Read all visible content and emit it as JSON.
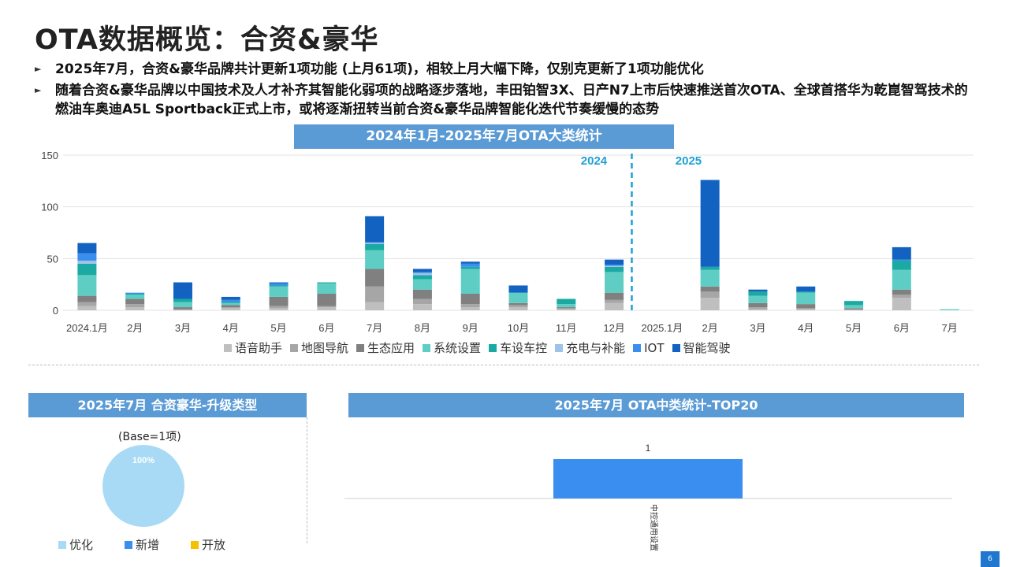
{
  "page": {
    "title": "OTA数据概览：合资&豪华",
    "bullets": [
      "2025年7月，合资&豪华品牌共计更新1项功能 (上月61项)，相较上月大幅下降，仅别克更新了1项功能优化",
      "随着合资&豪华品牌以中国技术及人才补齐其智能化弱项的战略逐步落地，丰田铂智3X、日产N7上市后快速推送首次OTA、全球首搭华为乾崑智驾技术的燃油车奥迪A5L Sportback正式上市，或将逐渐扭转当前合资&豪华品牌智能化迭代节奏缓慢的态势"
    ],
    "bullet_marker": "►",
    "page_number": "6"
  },
  "chart_data": [
    {
      "type": "bar",
      "stacked": true,
      "title": "2024年1月-2025年7月OTA大类统计",
      "categories": [
        "2024.1月",
        "2月",
        "3月",
        "4月",
        "5月",
        "6月",
        "7月",
        "8月",
        "9月",
        "10月",
        "11月",
        "12月",
        "2025.1月",
        "2月",
        "3月",
        "4月",
        "5月",
        "6月",
        "7月"
      ],
      "ylim": [
        0,
        150
      ],
      "yticks": [
        0,
        50,
        100,
        150
      ],
      "grid": true,
      "year_labels": [
        "2024",
        "2025"
      ],
      "legend_position": "bottom",
      "series": [
        {
          "name": "语音助手",
          "color": "#bfbfbf",
          "values": [
            4,
            3,
            0,
            2,
            2,
            3,
            8,
            6,
            3,
            3,
            1,
            7,
            0,
            12,
            1,
            1,
            0,
            12,
            0
          ]
        },
        {
          "name": "地图导航",
          "color": "#a6a6a6",
          "values": [
            4,
            3,
            1,
            1,
            2,
            1,
            15,
            5,
            3,
            2,
            1,
            3,
            0,
            6,
            2,
            1,
            1,
            3,
            0
          ]
        },
        {
          "name": "生态应用",
          "color": "#808080",
          "values": [
            6,
            5,
            2,
            2,
            9,
            12,
            17,
            9,
            10,
            2,
            1,
            7,
            0,
            5,
            4,
            4,
            1,
            5,
            0
          ]
        },
        {
          "name": "系统设置",
          "color": "#5ecec4",
          "values": [
            20,
            4,
            5,
            2,
            10,
            10,
            18,
            10,
            24,
            10,
            3,
            20,
            0,
            16,
            7,
            11,
            3,
            19,
            1
          ]
        },
        {
          "name": "车设车控",
          "color": "#1baaa3",
          "values": [
            11,
            1,
            3,
            1,
            1,
            1,
            6,
            4,
            2,
            0,
            5,
            5,
            0,
            3,
            4,
            1,
            4,
            9,
            0
          ]
        },
        {
          "name": "充电与补能",
          "color": "#9dc3e6",
          "values": [
            3,
            0,
            0,
            0,
            0,
            0,
            1,
            2,
            0,
            0,
            0,
            1,
            0,
            0,
            0,
            0,
            0,
            0,
            0
          ]
        },
        {
          "name": "IOT",
          "color": "#3a8ef0",
          "values": [
            7,
            1,
            0,
            2,
            2,
            0,
            1,
            1,
            3,
            0,
            0,
            1,
            0,
            0,
            0,
            0,
            0,
            1,
            0
          ]
        },
        {
          "name": "智能驾驶",
          "color": "#1262c1",
          "values": [
            10,
            0,
            16,
            3,
            1,
            0,
            25,
            3,
            2,
            7,
            0,
            5,
            0,
            84,
            2,
            5,
            0,
            12,
            0
          ]
        }
      ]
    },
    {
      "type": "pie",
      "title": "2025年7月 合资豪华-升级类型",
      "subtitle": "(Base=1项)",
      "legend_position": "bottom",
      "categories": [
        "优化",
        "新增",
        "开放"
      ],
      "colors": [
        "#a9daf5",
        "#3a8ef0",
        "#f5c000"
      ],
      "values": [
        100,
        0,
        0
      ],
      "value_labels": [
        "100%"
      ]
    },
    {
      "type": "bar",
      "title": "2025年7月 OTA中类统计-TOP20",
      "categories": [
        "中控通用设置"
      ],
      "values": [
        1
      ],
      "color": "#3a8ef0",
      "ylim": [
        0,
        1.2
      ],
      "data_labels": true
    }
  ]
}
